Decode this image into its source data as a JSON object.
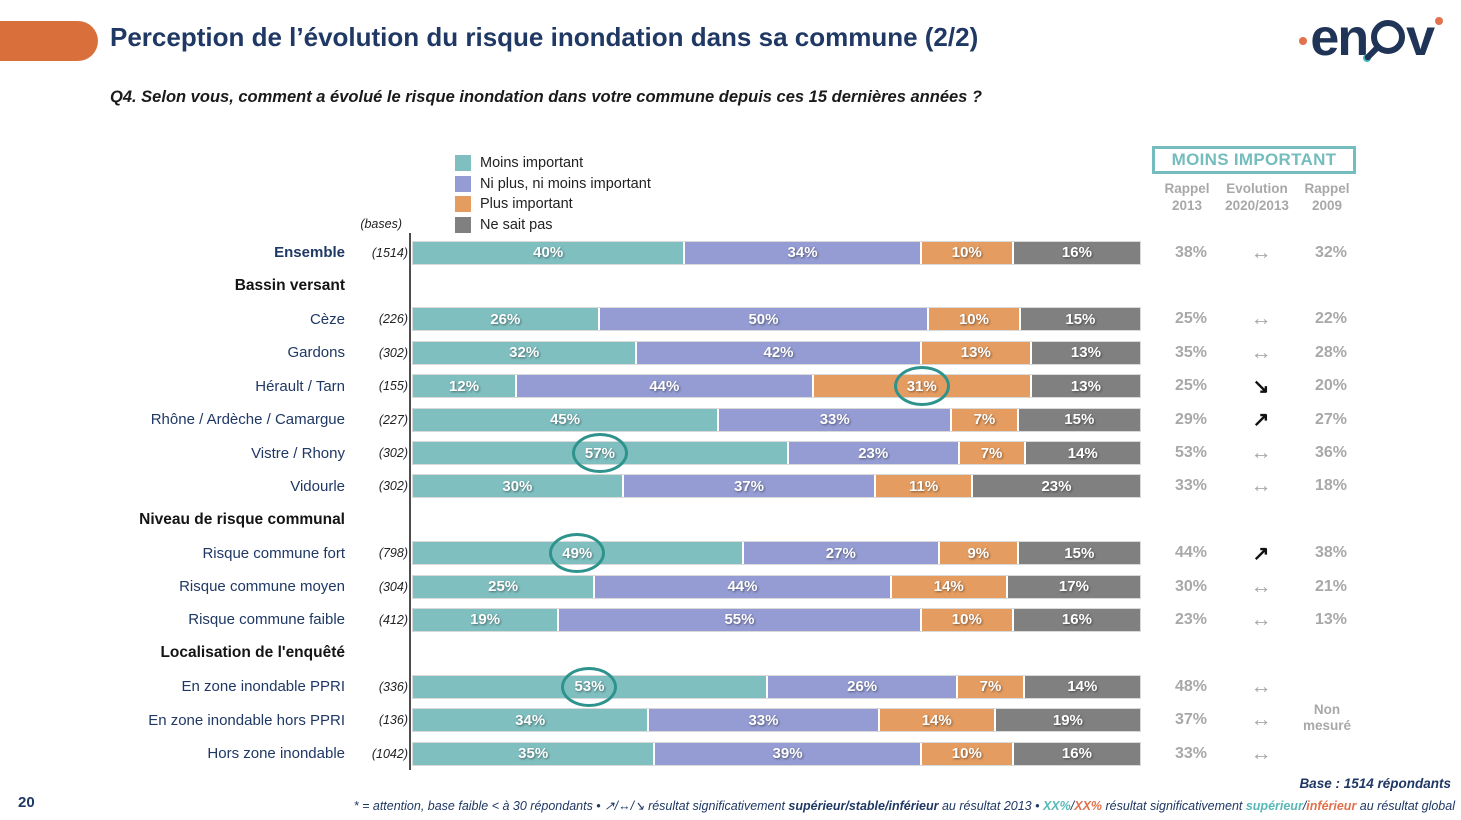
{
  "header": {
    "title": "Perception de l’évolution du risque inondation dans sa commune (2/2)",
    "logo": {
      "letter_e": "e",
      "letter_n": "n",
      "letter_v": "v"
    }
  },
  "question": "Q4. Selon vous, comment a évolué le risque inondation dans votre commune depuis ces 15 dernières années ?",
  "bases_label": "(bases)",
  "recall_panel": {
    "box_label": "MOINS IMPORTANT",
    "columns": [
      {
        "line1": "Rappel",
        "line2": "2013"
      },
      {
        "line1": "Evolution",
        "line2": "2020/2013"
      },
      {
        "line1": "Rappel",
        "line2": "2009"
      }
    ],
    "not_measured_line1": "Non",
    "not_measured_line2": "mesuré"
  },
  "evolution_glyphs": {
    "stable": "↔",
    "up": "↗",
    "down": "↘"
  },
  "chart_data": {
    "type": "bar",
    "subtype": "horizontal-stacked-100",
    "axis_max": 100,
    "legend": [
      {
        "label": "Moins important",
        "color": "#7FBFC0"
      },
      {
        "label": "Ni plus, ni moins important",
        "color": "#949CD3"
      },
      {
        "label": "Plus important",
        "color": "#E49C60"
      },
      {
        "label": "Ne sait pas",
        "color": "#808080"
      }
    ],
    "colors": [
      "#7FBFC0",
      "#949CD3",
      "#E49C60",
      "#808080"
    ],
    "rows": [
      {
        "type": "bar",
        "label": "Ensemble",
        "base": "(1514)",
        "bold": true,
        "values": [
          40,
          34,
          10,
          16
        ],
        "rappel2013": "38%",
        "evolution": "stable",
        "rappel2009": "32%"
      },
      {
        "type": "section",
        "label": "Bassin versant"
      },
      {
        "type": "bar",
        "label": "Cèze",
        "base": "(226)",
        "values": [
          26,
          50,
          10,
          15
        ],
        "rappel2013": "25%",
        "evolution": "stable",
        "rappel2009": "22%"
      },
      {
        "type": "bar",
        "label": "Gardons",
        "base": "(302)",
        "values": [
          32,
          42,
          13,
          13
        ],
        "rappel2013": "35%",
        "evolution": "stable",
        "rappel2009": "28%"
      },
      {
        "type": "bar",
        "label": "Hérault / Tarn",
        "base": "(155)",
        "values": [
          12,
          44,
          31,
          13
        ],
        "circled": 2,
        "rappel2013": "25%",
        "evolution": "down",
        "rappel2009": "20%"
      },
      {
        "type": "bar",
        "label": "Rhône / Ardèche / Camargue",
        "base": "(227)",
        "values": [
          45,
          33,
          7,
          15
        ],
        "rappel2013": "29%",
        "evolution": "up",
        "rappel2009": "27%"
      },
      {
        "type": "bar",
        "label": "Vistre / Rhony",
        "base": "(302)",
        "values": [
          57,
          23,
          7,
          14
        ],
        "circled": 0,
        "rappel2013": "53%",
        "evolution": "stable",
        "rappel2009": "36%"
      },
      {
        "type": "bar",
        "label": "Vidourle",
        "base": "(302)",
        "values": [
          30,
          37,
          11,
          23
        ],
        "rappel2013": "33%",
        "evolution": "stable",
        "rappel2009": "18%"
      },
      {
        "type": "section",
        "label": "Niveau de risque communal"
      },
      {
        "type": "bar",
        "label": "Risque commune fort",
        "base": "(798)",
        "values": [
          49,
          27,
          9,
          15
        ],
        "circled": 0,
        "rappel2013": "44%",
        "evolution": "up",
        "rappel2009": "38%"
      },
      {
        "type": "bar",
        "label": "Risque commune moyen",
        "base": "(304)",
        "values": [
          25,
          44,
          14,
          17
        ],
        "rappel2013": "30%",
        "evolution": "stable",
        "rappel2009": "21%"
      },
      {
        "type": "bar",
        "label": "Risque commune faible",
        "base": "(412)",
        "values": [
          19,
          55,
          10,
          16
        ],
        "rappel2013": "23%",
        "evolution": "stable",
        "rappel2009": "13%"
      },
      {
        "type": "section",
        "label": "Localisation de l'enquêté"
      },
      {
        "type": "bar",
        "label": "En zone inondable PPRI",
        "base": "(336)",
        "values": [
          53,
          26,
          7,
          14
        ],
        "circled": 0,
        "rappel2013": "48%",
        "evolution": "stable",
        "rappel2009": ""
      },
      {
        "type": "bar",
        "label": "En zone inondable hors PPRI",
        "base": "(136)",
        "values": [
          34,
          33,
          14,
          19
        ],
        "rappel2013": "37%",
        "evolution": "stable",
        "rappel2009": ""
      },
      {
        "type": "bar",
        "label": "Hors zone inondable",
        "base": "(1042)",
        "values": [
          35,
          39,
          10,
          16
        ],
        "rappel2013": "33%",
        "evolution": "stable",
        "rappel2009": ""
      }
    ]
  },
  "footer": {
    "base_note": "Base : 1514 répondants",
    "page_number": "20",
    "footnote_segments": [
      {
        "t": "* = attention, base faible < à 30 répondants • ",
        "s": "plain"
      },
      {
        "t": "↗",
        "s": "plain"
      },
      {
        "t": "/",
        "s": "plain"
      },
      {
        "t": "↔",
        "s": "plain"
      },
      {
        "t": "/",
        "s": "plain"
      },
      {
        "t": "↘",
        "s": "plain"
      },
      {
        "t": " résultat significativement ",
        "s": "plain"
      },
      {
        "t": "supérieur",
        "s": "bold"
      },
      {
        "t": "/",
        "s": "bold"
      },
      {
        "t": "stable",
        "s": "bold"
      },
      {
        "t": "/",
        "s": "bold"
      },
      {
        "t": "inférieur",
        "s": "bold"
      },
      {
        "t": " au résultat 2013 • ",
        "s": "plain"
      },
      {
        "t": "XX%",
        "s": "teal"
      },
      {
        "t": "/",
        "s": "plain"
      },
      {
        "t": "XX%",
        "s": "orange"
      },
      {
        "t": " résultat significativement ",
        "s": "plain"
      },
      {
        "t": "supérieur",
        "s": "teal"
      },
      {
        "t": "/",
        "s": "plain"
      },
      {
        "t": "inférieur",
        "s": "orange"
      },
      {
        "t": " au résultat global",
        "s": "plain"
      }
    ]
  }
}
